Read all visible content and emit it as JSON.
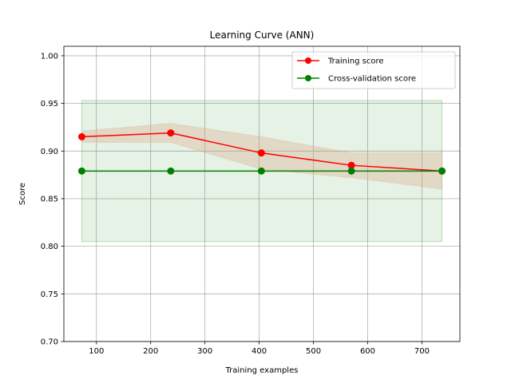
{
  "chart_data": {
    "type": "line",
    "title": "Learning Curve (ANN)",
    "xlabel": "Training examples",
    "ylabel": "Score",
    "xlim": [
      40,
      770
    ],
    "ylim": [
      0.7,
      1.01
    ],
    "x_ticks": [
      100,
      200,
      300,
      400,
      500,
      600,
      700
    ],
    "y_ticks": [
      0.7,
      0.75,
      0.8,
      0.85,
      0.9,
      0.95,
      1.0
    ],
    "x_tick_labels": [
      "100",
      "200",
      "300",
      "400",
      "500",
      "600",
      "700"
    ],
    "y_tick_labels": [
      "0.70",
      "0.75",
      "0.80",
      "0.85",
      "0.90",
      "0.95",
      "1.00"
    ],
    "grid": true,
    "legend_position": "top-right",
    "x": [
      73,
      237,
      404,
      570,
      737
    ],
    "series": [
      {
        "name": "Training score",
        "color": "#ff0000",
        "values": [
          0.915,
          0.919,
          0.898,
          0.885,
          0.879
        ],
        "band_upper": [
          0.921,
          0.929,
          0.915,
          0.898,
          0.898
        ],
        "band_lower": [
          0.909,
          0.909,
          0.881,
          0.872,
          0.86
        ],
        "band_color": "#d9a98a"
      },
      {
        "name": "Cross-validation score",
        "color": "#008000",
        "values": [
          0.879,
          0.879,
          0.879,
          0.879,
          0.879
        ],
        "band_upper": [
          0.953,
          0.953,
          0.953,
          0.953,
          0.953
        ],
        "band_lower": [
          0.805,
          0.805,
          0.805,
          0.805,
          0.805
        ],
        "band_color": "#008000"
      }
    ]
  }
}
